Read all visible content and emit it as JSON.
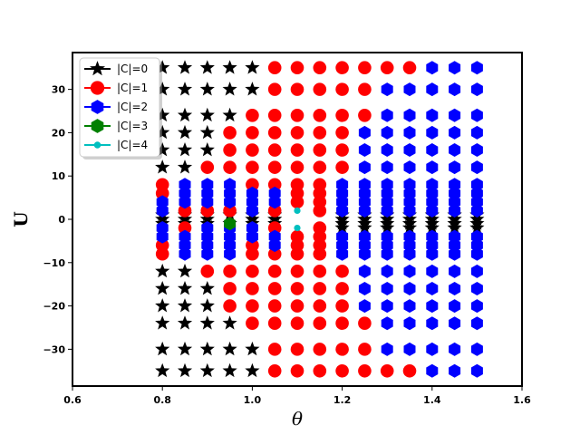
{
  "chart_data": {
    "type": "scatter",
    "title": "",
    "xlabel": "θ",
    "ylabel": "U",
    "xlim": [
      0.6,
      1.6
    ],
    "ylim": [
      -38.5,
      38.5
    ],
    "xticks": [
      0.6,
      0.8,
      1.0,
      1.2,
      1.4,
      1.6
    ],
    "xtick_labels": [
      "0.6",
      "0.8",
      "1.0",
      "1.2",
      "1.4",
      "1.6"
    ],
    "yticks": [
      -30,
      -20,
      -10,
      0,
      10,
      20,
      30
    ],
    "ytick_labels": [
      "−30",
      "−20",
      "−10",
      "0",
      "10",
      "20",
      "30"
    ],
    "grid": false,
    "legend_position": "top-left",
    "legend": [
      {
        "name": "|C|=0",
        "color": "#000000",
        "marker": "star"
      },
      {
        "name": "|C|=1",
        "color": "#ff0000",
        "marker": "circle"
      },
      {
        "name": "|C|=2",
        "color": "#0000ff",
        "marker": "hexagon"
      },
      {
        "name": "|C|=3",
        "color": "#008000",
        "marker": "hexagon"
      },
      {
        "name": "|C|=4",
        "color": "#00bfbf",
        "marker": "circle-small"
      }
    ],
    "x_grid": [
      0.8,
      0.85,
      0.9,
      0.95,
      1.0,
      1.05,
      1.1,
      1.15,
      1.2,
      1.25,
      1.3,
      1.35,
      1.4,
      1.45,
      1.5
    ],
    "u_levels": [
      35,
      30,
      24,
      20,
      16,
      12,
      8,
      6,
      4,
      2,
      1,
      0,
      -1,
      -2,
      -4,
      -6,
      -8,
      -12,
      -16,
      -20,
      -24,
      -30,
      -35
    ],
    "series": [
      {
        "name": "|C|=0",
        "rows": [
          {
            "u": 35,
            "x": [
              0.8,
              0.85,
              0.9,
              0.95,
              1.0
            ]
          },
          {
            "u": 30,
            "x": [
              0.8,
              0.85,
              0.9,
              0.95,
              1.0
            ]
          },
          {
            "u": 24,
            "x": [
              0.8,
              0.85,
              0.9,
              0.95
            ]
          },
          {
            "u": 20,
            "x": [
              0.8,
              0.85,
              0.9
            ]
          },
          {
            "u": 16,
            "x": [
              0.8,
              0.85,
              0.9
            ]
          },
          {
            "u": 12,
            "x": [
              0.8,
              0.85
            ]
          },
          {
            "u": 1,
            "x": [
              0.8,
              0.85,
              0.9,
              0.95,
              1.0,
              1.05,
              1.2,
              1.25,
              1.3,
              1.35,
              1.4,
              1.45,
              1.5
            ]
          },
          {
            "u": 0,
            "x": [
              0.8,
              0.85,
              0.9,
              1.0,
              1.05,
              1.2,
              1.25,
              1.3,
              1.35,
              1.4,
              1.45,
              1.5
            ]
          },
          {
            "u": -1,
            "x": [
              0.8,
              0.85,
              0.9,
              0.95,
              1.0,
              1.05,
              1.2,
              1.25,
              1.3,
              1.35,
              1.4,
              1.45,
              1.5
            ]
          },
          {
            "u": -2,
            "x": [
              1.2,
              1.25,
              1.3,
              1.35,
              1.4,
              1.45,
              1.5
            ]
          },
          {
            "u": -12,
            "x": [
              0.8,
              0.85
            ]
          },
          {
            "u": -16,
            "x": [
              0.8,
              0.85,
              0.9
            ]
          },
          {
            "u": -20,
            "x": [
              0.8,
              0.85,
              0.9
            ]
          },
          {
            "u": -24,
            "x": [
              0.8,
              0.85,
              0.9,
              0.95
            ]
          },
          {
            "u": -30,
            "x": [
              0.8,
              0.85,
              0.9,
              0.95,
              1.0
            ]
          },
          {
            "u": -35,
            "x": [
              0.8,
              0.85,
              0.9,
              0.95,
              1.0
            ]
          }
        ]
      },
      {
        "name": "|C|=1",
        "rows": [
          {
            "u": 35,
            "x": [
              1.05,
              1.1,
              1.15,
              1.2,
              1.25,
              1.3,
              1.35
            ]
          },
          {
            "u": 30,
            "x": [
              1.05,
              1.1,
              1.15,
              1.2,
              1.25
            ]
          },
          {
            "u": 24,
            "x": [
              1.0,
              1.05,
              1.1,
              1.15,
              1.2,
              1.25
            ]
          },
          {
            "u": 20,
            "x": [
              0.95,
              1.0,
              1.05,
              1.1,
              1.15,
              1.2
            ]
          },
          {
            "u": 16,
            "x": [
              0.95,
              1.0,
              1.05,
              1.1,
              1.15,
              1.2
            ]
          },
          {
            "u": 12,
            "x": [
              0.9,
              0.95,
              1.0,
              1.05,
              1.1,
              1.15,
              1.2
            ]
          },
          {
            "u": 8,
            "x": [
              0.8,
              1.0,
              1.05,
              1.1,
              1.15
            ]
          },
          {
            "u": 6,
            "x": [
              0.8,
              1.1,
              1.15
            ]
          },
          {
            "u": 4,
            "x": [
              1.1,
              1.15
            ]
          },
          {
            "u": 2,
            "x": [
              0.85,
              0.9,
              0.95,
              1.05,
              1.15
            ]
          },
          {
            "u": -2,
            "x": [
              0.85,
              1.05,
              1.15
            ]
          },
          {
            "u": -4,
            "x": [
              1.1,
              1.15
            ]
          },
          {
            "u": -6,
            "x": [
              0.8,
              1.0,
              1.1,
              1.15
            ]
          },
          {
            "u": -8,
            "x": [
              0.8,
              1.0,
              1.05,
              1.1,
              1.15
            ]
          },
          {
            "u": -12,
            "x": [
              0.9,
              0.95,
              1.0,
              1.05,
              1.1,
              1.15,
              1.2
            ]
          },
          {
            "u": -16,
            "x": [
              0.95,
              1.0,
              1.05,
              1.1,
              1.15,
              1.2
            ]
          },
          {
            "u": -20,
            "x": [
              0.95,
              1.0,
              1.05,
              1.1,
              1.15,
              1.2
            ]
          },
          {
            "u": -24,
            "x": [
              1.0,
              1.05,
              1.1,
              1.15,
              1.2,
              1.25
            ]
          },
          {
            "u": -30,
            "x": [
              1.05,
              1.1,
              1.15,
              1.2,
              1.25
            ]
          },
          {
            "u": -35,
            "x": [
              1.05,
              1.1,
              1.15,
              1.2,
              1.25,
              1.3,
              1.35
            ]
          }
        ]
      },
      {
        "name": "|C|=2",
        "rows": [
          {
            "u": 35,
            "x": [
              1.4,
              1.45,
              1.5
            ]
          },
          {
            "u": 30,
            "x": [
              1.3,
              1.35,
              1.4,
              1.45,
              1.5
            ]
          },
          {
            "u": 24,
            "x": [
              1.3,
              1.35,
              1.4,
              1.45,
              1.5
            ]
          },
          {
            "u": 20,
            "x": [
              1.25,
              1.3,
              1.35,
              1.4,
              1.45,
              1.5
            ]
          },
          {
            "u": 16,
            "x": [
              1.25,
              1.3,
              1.35,
              1.4,
              1.45,
              1.5
            ]
          },
          {
            "u": 12,
            "x": [
              1.25,
              1.3,
              1.35,
              1.4,
              1.45,
              1.5
            ]
          },
          {
            "u": 8,
            "x": [
              0.85,
              0.9,
              0.95,
              1.2,
              1.25,
              1.3,
              1.35,
              1.4,
              1.45,
              1.5
            ]
          },
          {
            "u": 6,
            "x": [
              0.85,
              0.9,
              0.95,
              1.0,
              1.05,
              1.2,
              1.25,
              1.3,
              1.35,
              1.4,
              1.45,
              1.5
            ]
          },
          {
            "u": 4,
            "x": [
              0.8,
              0.85,
              0.9,
              0.95,
              1.0,
              1.05,
              1.2,
              1.25,
              1.3,
              1.35,
              1.4,
              1.45,
              1.5
            ]
          },
          {
            "u": 2,
            "x": [
              0.8,
              1.0,
              1.2,
              1.25,
              1.3,
              1.35,
              1.4,
              1.45,
              1.5
            ]
          },
          {
            "u": -2,
            "x": [
              0.8,
              0.9,
              0.95,
              1.0
            ]
          },
          {
            "u": -4,
            "x": [
              0.8,
              0.85,
              0.9,
              0.95,
              1.0,
              1.05,
              1.2,
              1.25,
              1.3,
              1.35,
              1.4,
              1.45,
              1.5
            ]
          },
          {
            "u": -6,
            "x": [
              0.85,
              0.9,
              0.95,
              1.05,
              1.2,
              1.25,
              1.3,
              1.35,
              1.4,
              1.45,
              1.5
            ]
          },
          {
            "u": -8,
            "x": [
              0.85,
              0.9,
              0.95,
              1.2,
              1.25,
              1.3,
              1.35,
              1.4,
              1.45,
              1.5
            ]
          },
          {
            "u": -12,
            "x": [
              1.25,
              1.3,
              1.35,
              1.4,
              1.45,
              1.5
            ]
          },
          {
            "u": -16,
            "x": [
              1.25,
              1.3,
              1.35,
              1.4,
              1.45,
              1.5
            ]
          },
          {
            "u": -20,
            "x": [
              1.25,
              1.3,
              1.35,
              1.4,
              1.45,
              1.5
            ]
          },
          {
            "u": -24,
            "x": [
              1.3,
              1.35,
              1.4,
              1.45,
              1.5
            ]
          },
          {
            "u": -30,
            "x": [
              1.3,
              1.35,
              1.4,
              1.45,
              1.5
            ]
          },
          {
            "u": -35,
            "x": [
              1.4,
              1.45,
              1.5
            ]
          }
        ]
      },
      {
        "name": "|C|=3",
        "rows": [
          {
            "u": -1,
            "x": [
              0.95
            ]
          }
        ]
      },
      {
        "name": "|C|=4",
        "rows": [
          {
            "u": 2,
            "x": [
              1.1
            ]
          },
          {
            "u": -2,
            "x": [
              1.1
            ]
          }
        ]
      }
    ]
  }
}
